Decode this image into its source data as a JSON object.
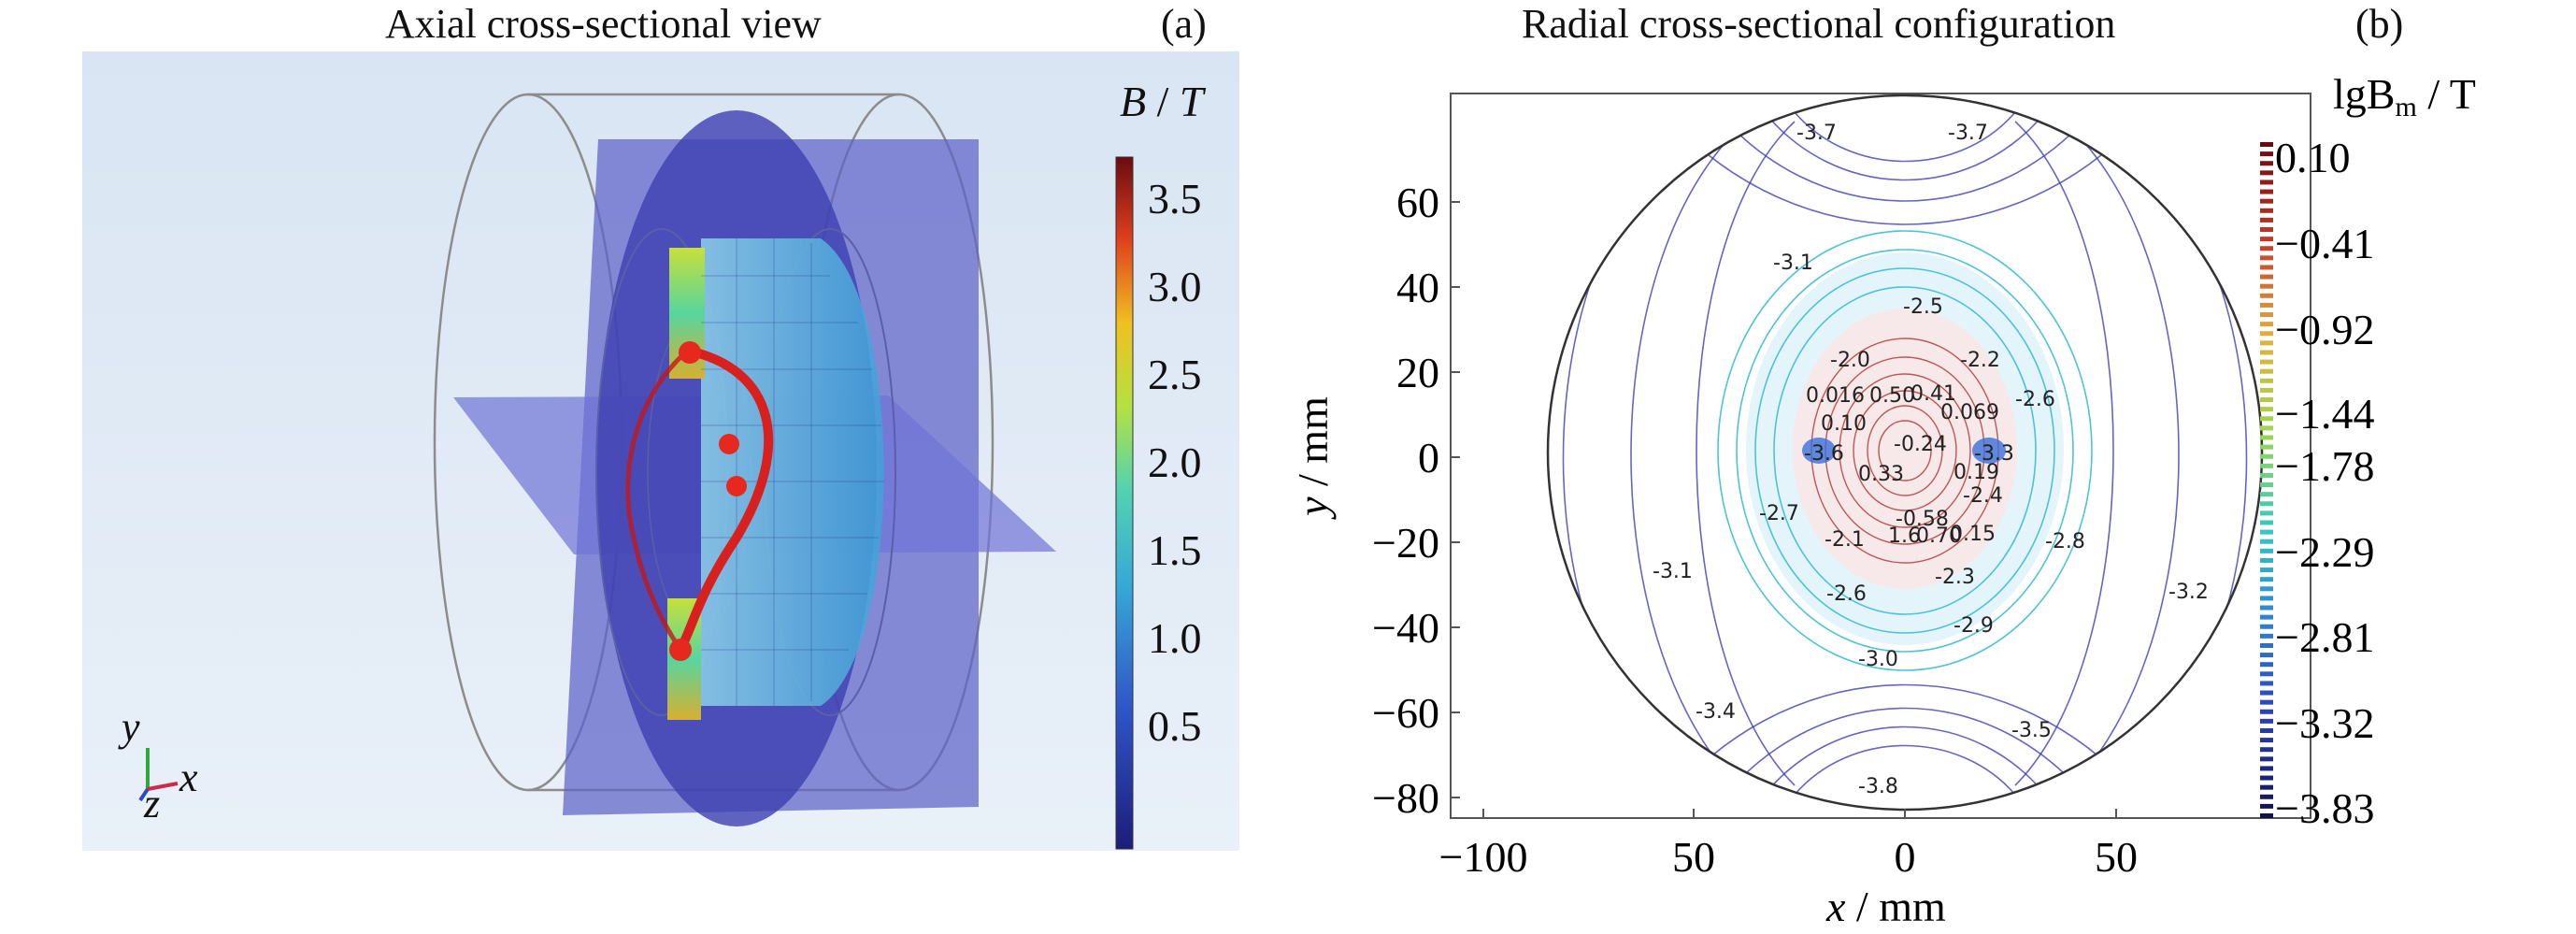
{
  "panel_a": {
    "title": "Axial cross-sectional view",
    "letter": "(a)",
    "colorbar": {
      "label_var": "B",
      "label_sep": " / ",
      "label_unit": "T",
      "ticks": [
        "3.5",
        "3.0",
        "2.5",
        "2.0",
        "1.5",
        "1.0",
        "0.5"
      ],
      "range": [
        0.2,
        3.7
      ],
      "colors": [
        "#1c1d7a",
        "#2f54c8",
        "#36a8d8",
        "#53d3b0",
        "#b4e23f",
        "#f0c020",
        "#e0401c",
        "#6b0b10"
      ]
    },
    "axes": {
      "y": "y",
      "x": "x",
      "z": "z"
    }
  },
  "panel_b": {
    "title": "Radial cross-sectional configuration",
    "letter": "(b)",
    "xlabel_var": "x",
    "xlabel_unit": " / mm",
    "ylabel_var": "y",
    "ylabel_unit": " / mm",
    "xticks": [
      "−100",
      "50",
      "0",
      "50"
    ],
    "yticks": [
      "60",
      "40",
      "20",
      "0",
      "−20",
      "−40",
      "−60",
      "−80"
    ],
    "colorbar": {
      "label_main": "lgB",
      "label_sub": "m",
      "label_unit": " / T",
      "ticks": [
        "0.10",
        "−0.41",
        "−0.92",
        "−1.44",
        "−1.78",
        "−2.29",
        "−2.81",
        "−3.32",
        "−3.83"
      ],
      "colors": [
        "#6b0b10",
        "#c23a2a",
        "#e0b040",
        "#9bd84f",
        "#38c7c0",
        "#2f7fd0",
        "#2a3fb0",
        "#12124a"
      ]
    },
    "contour_labels": [
      "-3.7",
      "-3.7",
      "-3.1",
      "-2.5",
      "-2.0",
      "-2.2",
      "0.016",
      "0.50",
      "0.41",
      "0.069",
      "-2.6",
      "0.10",
      "-0.24",
      "-3.6",
      "-3.3",
      "0.19",
      "0.33",
      "-2.4",
      "-2.7",
      "-0.58",
      "-2.1",
      "1.6",
      "0.70",
      "0.15",
      "-2.8",
      "-3.1",
      "-2.3",
      "-3.2",
      "-2.6",
      "-2.9",
      "-3.0",
      "-3.4",
      "-3.5",
      "-3.8"
    ]
  }
}
